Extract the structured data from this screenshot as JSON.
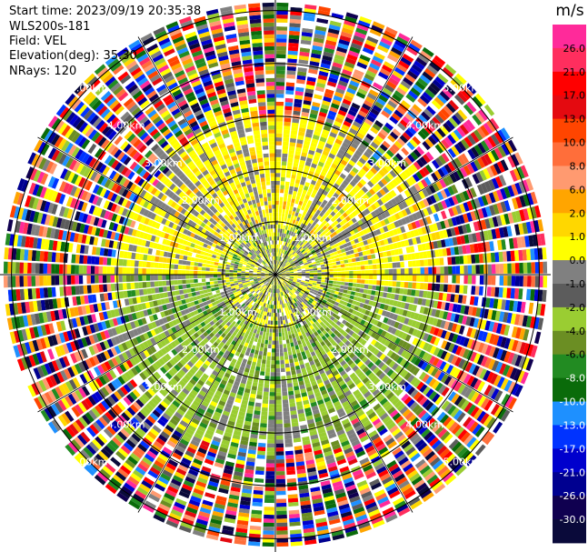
{
  "header": {
    "start_time": "Start time: 2023/09/19 20:35:38",
    "site": "WLS200s-181",
    "field": "Field: VEL",
    "elevation": "Elevation(deg): 35.30",
    "nrays": "NRays: 120"
  },
  "chart_data": {
    "type": "heatmap",
    "projection": "polar-ppi",
    "nrays": 120,
    "range_unit": "km",
    "range_max_km": 5.2,
    "range_rings": [
      {
        "label": "1.00km",
        "km": 1.0
      },
      {
        "label": "2.00km",
        "km": 2.0
      },
      {
        "label": "3.00km",
        "km": 3.0
      },
      {
        "label": "4.00km",
        "km": 4.0
      },
      {
        "label": "5.00km",
        "km": 5.0
      }
    ],
    "ring_label_bearings_deg": [
      -45,
      45,
      135,
      -135
    ],
    "crosshair": true,
    "spokes_every_deg": 30,
    "colorbar": {
      "unit": "m/s",
      "ticks": [
        "26.0",
        "21.0",
        "17.0",
        "13.0",
        "10.0",
        "8.0",
        "6.0",
        "2.0",
        "1.0",
        "0.0",
        "-1.0",
        "-2.0",
        "-4.0",
        "-6.0",
        "-8.0",
        "-10.0",
        "-13.0",
        "-17.0",
        "-21.0",
        "-26.0",
        "-30.0"
      ],
      "colors": [
        "#ff2a9a",
        "#ff2e5e",
        "#ff0000",
        "#e40a10",
        "#ff4500",
        "#ff6e3a",
        "#ff9a70",
        "#ffa500",
        "#ffd700",
        "#ffff00",
        "#808080",
        "#5c5c5c",
        "#9acd32",
        "#6b8e23",
        "#228b22",
        "#0a6b0a",
        "#1e90ff",
        "#0033ff",
        "#0000cd",
        "#000090",
        "#100050",
        "#0a0a3a"
      ]
    },
    "gates": {
      "inner_km_range": [
        0.0,
        1.0
      ],
      "inner_pattern": "mixed yellow, grey and green (weak velocities -2..2 m/s)",
      "middle_km_range": [
        1.0,
        3.0
      ],
      "middle_pattern": "north half yellow (+1..+2 m/s), south half olive/green (-1..-4 m/s), grey rays in between",
      "outer_km_range": [
        3.0,
        5.2
      ],
      "outer_pattern": "noisy multi-colour gates across full velocity range"
    }
  }
}
